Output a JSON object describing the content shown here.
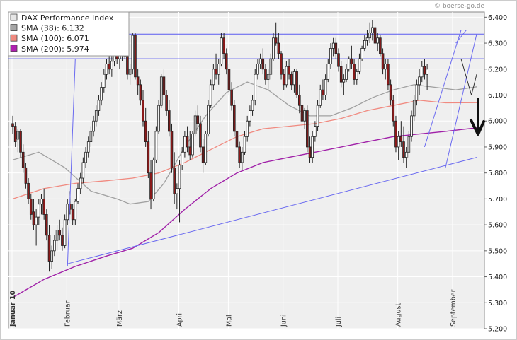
{
  "chart_data": {
    "type": "candlestick",
    "title": "DAX Performance Index",
    "copyright": "© boerse-go.de",
    "legend": [
      {
        "label": "DAX Performance Index",
        "color": "#e6e6e6"
      },
      {
        "label": "SMA (38): 6.132",
        "color": "#a6a6a6"
      },
      {
        "label": "SMA (100): 6.071",
        "color": "#f08a80"
      },
      {
        "label": "SMA (200): 5.974",
        "color": "#b020b0"
      }
    ],
    "ylim": [
      5200,
      6420
    ],
    "yticks": [
      5200,
      5300,
      5400,
      5500,
      5600,
      5700,
      5800,
      5900,
      6000,
      6100,
      6200,
      6300,
      6400
    ],
    "ytick_labels": [
      "5.200",
      "5.300",
      "5.400",
      "5.500",
      "5.600",
      "5.700",
      "5.800",
      "5.900",
      "6.000",
      "6.100",
      "6.200",
      "6.300",
      "6.400"
    ],
    "month_labels": [
      "Januar 10",
      "Februar",
      "März",
      "April",
      "Mai",
      "Juni",
      "Juli",
      "August",
      "September"
    ],
    "month_positions": [
      0,
      21,
      41,
      64,
      83,
      104,
      125,
      148,
      169
    ],
    "horizontal_lines": [
      6335,
      6240
    ],
    "candles": [
      [
        5990,
        6020,
        5950,
        5980
      ],
      [
        5980,
        5995,
        5900,
        5920
      ],
      [
        5930,
        5970,
        5880,
        5960
      ],
      [
        5960,
        5970,
        5860,
        5880
      ],
      [
        5880,
        5910,
        5800,
        5820
      ],
      [
        5820,
        5840,
        5740,
        5760
      ],
      [
        5760,
        5780,
        5680,
        5700
      ],
      [
        5700,
        5720,
        5620,
        5640
      ],
      [
        5650,
        5700,
        5580,
        5600
      ],
      [
        5600,
        5660,
        5520,
        5630
      ],
      [
        5630,
        5700,
        5600,
        5680
      ],
      [
        5680,
        5720,
        5640,
        5700
      ],
      [
        5700,
        5740,
        5620,
        5640
      ],
      [
        5640,
        5660,
        5540,
        5560
      ],
      [
        5560,
        5600,
        5420,
        5460
      ],
      [
        5460,
        5520,
        5430,
        5500
      ],
      [
        5500,
        5560,
        5480,
        5540
      ],
      [
        5540,
        5600,
        5500,
        5580
      ],
      [
        5580,
        5620,
        5540,
        5560
      ],
      [
        5560,
        5590,
        5500,
        5520
      ],
      [
        5520,
        5640,
        5510,
        5620
      ],
      [
        5620,
        5700,
        5600,
        5680
      ],
      [
        5680,
        5730,
        5640,
        5660
      ],
      [
        5660,
        5680,
        5600,
        5620
      ],
      [
        5620,
        5700,
        5600,
        5690
      ],
      [
        5690,
        5760,
        5680,
        5740
      ],
      [
        5740,
        5800,
        5720,
        5780
      ],
      [
        5780,
        5860,
        5760,
        5840
      ],
      [
        5840,
        5900,
        5820,
        5880
      ],
      [
        5880,
        5940,
        5860,
        5920
      ],
      [
        5920,
        5980,
        5900,
        5960
      ],
      [
        5960,
        6020,
        5940,
        6000
      ],
      [
        6000,
        6060,
        5980,
        6040
      ],
      [
        6040,
        6100,
        6020,
        6080
      ],
      [
        6080,
        6150,
        6060,
        6130
      ],
      [
        6130,
        6200,
        6110,
        6180
      ],
      [
        6180,
        6240,
        6160,
        6220
      ],
      [
        6220,
        6260,
        6180,
        6200
      ],
      [
        6200,
        6250,
        6170,
        6230
      ],
      [
        6230,
        6280,
        6210,
        6260
      ],
      [
        6260,
        6300,
        6220,
        6240
      ],
      [
        6240,
        6280,
        6200,
        6260
      ],
      [
        6260,
        6300,
        6230,
        6280
      ],
      [
        6280,
        6320,
        6240,
        6250
      ],
      [
        6250,
        6270,
        6160,
        6180
      ],
      [
        6180,
        6220,
        6140,
        6200
      ],
      [
        6200,
        6340,
        6180,
        6330
      ],
      [
        6330,
        6340,
        6160,
        6170
      ],
      [
        6170,
        6200,
        6100,
        6140
      ],
      [
        6140,
        6160,
        6060,
        6080
      ],
      [
        6080,
        6120,
        5980,
        6000
      ],
      [
        6000,
        6050,
        5900,
        5920
      ],
      [
        5920,
        5960,
        5780,
        5800
      ],
      [
        5800,
        5850,
        5660,
        5700
      ],
      [
        5700,
        5860,
        5690,
        5850
      ],
      [
        5850,
        5980,
        5840,
        5960
      ],
      [
        5960,
        6080,
        5950,
        6060
      ],
      [
        6060,
        6180,
        6050,
        6170
      ],
      [
        6170,
        6200,
        6080,
        6100
      ],
      [
        6100,
        6120,
        6020,
        6040
      ],
      [
        6040,
        6080,
        5940,
        5960
      ],
      [
        5960,
        5990,
        5800,
        5820
      ],
      [
        5820,
        5880,
        5680,
        5720
      ],
      [
        5720,
        5760,
        5660,
        5740
      ],
      [
        5740,
        5850,
        5610,
        5830
      ],
      [
        5830,
        5900,
        5810,
        5880
      ],
      [
        5880,
        5960,
        5860,
        5940
      ],
      [
        5940,
        5980,
        5880,
        5900
      ],
      [
        5900,
        5960,
        5850,
        5870
      ],
      [
        5870,
        5960,
        5860,
        5950
      ],
      [
        5950,
        6040,
        5940,
        6020
      ],
      [
        6020,
        6060,
        5960,
        5990
      ],
      [
        5990,
        6020,
        5880,
        5900
      ],
      [
        5900,
        5930,
        5800,
        5840
      ],
      [
        5840,
        5960,
        5830,
        5950
      ],
      [
        5950,
        6080,
        5940,
        6060
      ],
      [
        6060,
        6160,
        6050,
        6140
      ],
      [
        6140,
        6220,
        6120,
        6200
      ],
      [
        6200,
        6260,
        6160,
        6180
      ],
      [
        6180,
        6240,
        6140,
        6220
      ],
      [
        6220,
        6340,
        6210,
        6320
      ],
      [
        6320,
        6340,
        6240,
        6260
      ],
      [
        6260,
        6280,
        6180,
        6200
      ],
      [
        6200,
        6220,
        6100,
        6120
      ],
      [
        6120,
        6150,
        6040,
        6060
      ],
      [
        6060,
        6080,
        5940,
        5960
      ],
      [
        5960,
        5990,
        5880,
        5900
      ],
      [
        5900,
        5920,
        5820,
        5840
      ],
      [
        5840,
        5900,
        5810,
        5880
      ],
      [
        5880,
        5960,
        5870,
        5940
      ],
      [
        5940,
        6020,
        5920,
        6000
      ],
      [
        6000,
        6060,
        5980,
        6040
      ],
      [
        6040,
        6100,
        6020,
        6080
      ],
      [
        6080,
        6200,
        6060,
        6180
      ],
      [
        6180,
        6240,
        6160,
        6220
      ],
      [
        6220,
        6260,
        6200,
        6240
      ],
      [
        6240,
        6280,
        6180,
        6200
      ],
      [
        6200,
        6220,
        6140,
        6160
      ],
      [
        6160,
        6200,
        6120,
        6180
      ],
      [
        6180,
        6260,
        6160,
        6240
      ],
      [
        6240,
        6340,
        6230,
        6320
      ],
      [
        6320,
        6380,
        6290,
        6300
      ],
      [
        6300,
        6340,
        6240,
        6260
      ],
      [
        6260,
        6270,
        6160,
        6180
      ],
      [
        6180,
        6200,
        6120,
        6140
      ],
      [
        6140,
        6230,
        6130,
        6210
      ],
      [
        6210,
        6240,
        6160,
        6180
      ],
      [
        6180,
        6190,
        6120,
        6140
      ],
      [
        6140,
        6200,
        6110,
        6190
      ],
      [
        6190,
        6200,
        6090,
        6100
      ],
      [
        6100,
        6140,
        6030,
        6060
      ],
      [
        6060,
        6080,
        5980,
        6000
      ],
      [
        6000,
        6050,
        5970,
        6040
      ],
      [
        6040,
        6060,
        5880,
        5900
      ],
      [
        5900,
        5940,
        5840,
        5860
      ],
      [
        5860,
        5960,
        5840,
        5940
      ],
      [
        5940,
        6000,
        5920,
        5980
      ],
      [
        5980,
        6080,
        5960,
        6060
      ],
      [
        6060,
        6140,
        6050,
        6120
      ],
      [
        6120,
        6160,
        6080,
        6100
      ],
      [
        6100,
        6180,
        6080,
        6160
      ],
      [
        6160,
        6240,
        6150,
        6220
      ],
      [
        6220,
        6300,
        6200,
        6280
      ],
      [
        6280,
        6320,
        6250,
        6300
      ],
      [
        6300,
        6320,
        6240,
        6260
      ],
      [
        6260,
        6280,
        6190,
        6210
      ],
      [
        6210,
        6230,
        6130,
        6150
      ],
      [
        6150,
        6180,
        6100,
        6160
      ],
      [
        6160,
        6220,
        6150,
        6200
      ],
      [
        6200,
        6250,
        6190,
        6240
      ],
      [
        6240,
        6290,
        6200,
        6220
      ],
      [
        6220,
        6240,
        6140,
        6160
      ],
      [
        6160,
        6200,
        6140,
        6190
      ],
      [
        6190,
        6260,
        6180,
        6240
      ],
      [
        6240,
        6290,
        6230,
        6280
      ],
      [
        6280,
        6330,
        6270,
        6310
      ],
      [
        6310,
        6350,
        6290,
        6320
      ],
      [
        6320,
        6380,
        6300,
        6340
      ],
      [
        6340,
        6390,
        6310,
        6360
      ],
      [
        6360,
        6370,
        6290,
        6300
      ],
      [
        6300,
        6340,
        6270,
        6320
      ],
      [
        6320,
        6330,
        6250,
        6260
      ],
      [
        6260,
        6280,
        6180,
        6200
      ],
      [
        6200,
        6240,
        6160,
        6220
      ],
      [
        6220,
        6240,
        6120,
        6140
      ],
      [
        6140,
        6160,
        6060,
        6080
      ],
      [
        6080,
        6100,
        5980,
        6000
      ],
      [
        6000,
        6020,
        5880,
        5900
      ],
      [
        5900,
        5960,
        5850,
        5940
      ],
      [
        5940,
        6000,
        5900,
        5920
      ],
      [
        5920,
        5980,
        5840,
        5860
      ],
      [
        5860,
        5900,
        5820,
        5880
      ],
      [
        5880,
        5960,
        5860,
        5940
      ],
      [
        5940,
        6040,
        5920,
        6020
      ],
      [
        6020,
        6100,
        6000,
        6080
      ],
      [
        6080,
        6160,
        6060,
        6140
      ],
      [
        6140,
        6200,
        6100,
        6170
      ],
      [
        6170,
        6230,
        6150,
        6210
      ],
      [
        6210,
        6240,
        6160,
        6180
      ],
      [
        6180,
        6220,
        6120,
        6200
      ]
    ],
    "sma_38": [
      [
        0,
        5850
      ],
      [
        10,
        5880
      ],
      [
        20,
        5820
      ],
      [
        30,
        5730
      ],
      [
        40,
        5700
      ],
      [
        45,
        5680
      ],
      [
        52,
        5690
      ],
      [
        58,
        5760
      ],
      [
        66,
        5900
      ],
      [
        74,
        6020
      ],
      [
        82,
        6110
      ],
      [
        90,
        6150
      ],
      [
        98,
        6120
      ],
      [
        106,
        6060
      ],
      [
        114,
        6020
      ],
      [
        122,
        6020
      ],
      [
        130,
        6050
      ],
      [
        138,
        6090
      ],
      [
        146,
        6120
      ],
      [
        154,
        6140
      ],
      [
        162,
        6130
      ],
      [
        170,
        6120
      ],
      [
        178,
        6132
      ]
    ],
    "sma_100": [
      [
        0,
        5700
      ],
      [
        12,
        5740
      ],
      [
        24,
        5760
      ],
      [
        36,
        5770
      ],
      [
        46,
        5780
      ],
      [
        56,
        5800
      ],
      [
        66,
        5840
      ],
      [
        76,
        5890
      ],
      [
        86,
        5940
      ],
      [
        96,
        5970
      ],
      [
        106,
        5980
      ],
      [
        116,
        5990
      ],
      [
        126,
        6010
      ],
      [
        136,
        6040
      ],
      [
        146,
        6060
      ],
      [
        156,
        6080
      ],
      [
        166,
        6070
      ],
      [
        178,
        6071
      ]
    ],
    "sma_200": [
      [
        0,
        5320
      ],
      [
        12,
        5390
      ],
      [
        24,
        5440
      ],
      [
        36,
        5480
      ],
      [
        46,
        5510
      ],
      [
        56,
        5570
      ],
      [
        66,
        5660
      ],
      [
        76,
        5740
      ],
      [
        86,
        5800
      ],
      [
        96,
        5840
      ],
      [
        106,
        5860
      ],
      [
        116,
        5880
      ],
      [
        126,
        5900
      ],
      [
        136,
        5920
      ],
      [
        146,
        5940
      ],
      [
        156,
        5950
      ],
      [
        166,
        5960
      ],
      [
        178,
        5974
      ]
    ],
    "trendlines": [
      [
        [
          21,
          5450
        ],
        [
          178,
          5860
        ]
      ],
      [
        [
          21,
          5440
        ],
        [
          24,
          6240
        ]
      ],
      [
        [
          166,
          5820
        ],
        [
          178,
          6335
        ]
      ],
      [
        [
          158,
          5900
        ],
        [
          172,
          6350
        ]
      ],
      [
        [
          170,
          6300
        ],
        [
          174,
          6350
        ]
      ],
      [
        [
          172,
          6240
        ],
        [
          176,
          6100
        ]
      ],
      [
        [
          176,
          6100
        ],
        [
          178,
          6180
        ]
      ]
    ],
    "annotation": "down-arrow"
  }
}
